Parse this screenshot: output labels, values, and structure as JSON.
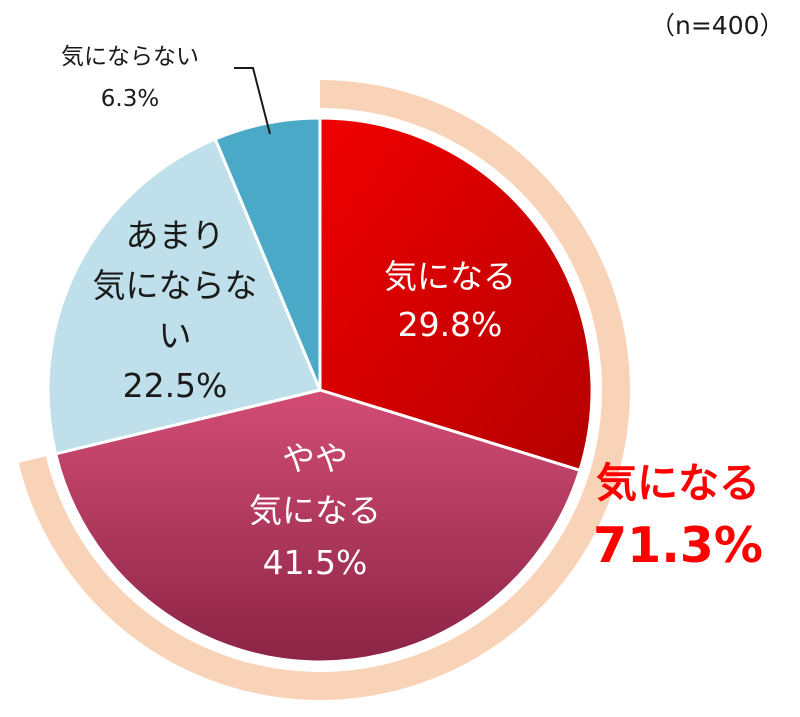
{
  "sample_note": "（n=400）",
  "chart_data": {
    "type": "pie",
    "slices": [
      {
        "label_lines": [
          "気になる"
        ],
        "value_label": "29.8%",
        "value": 29.8,
        "color": "#e00000"
      },
      {
        "label_lines": [
          "やや",
          "気になる"
        ],
        "value_label": "41.5%",
        "value": 41.5,
        "color": "#a2304f"
      },
      {
        "label_lines": [
          "あまり",
          "気にならな",
          "い"
        ],
        "value_label": "22.5%",
        "value": 22.5,
        "color": "#bfe0ea"
      },
      {
        "label_lines": [
          "気にならない"
        ],
        "value_label": "6.3%",
        "value": 6.3,
        "color": "#4aa9c6"
      }
    ],
    "aggregate": {
      "label": "気になる",
      "value_label": "71.3%",
      "value": 71.3,
      "color": "#ff0000",
      "band_color": "#f9d3b8"
    }
  }
}
